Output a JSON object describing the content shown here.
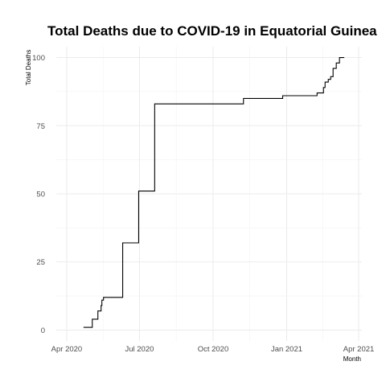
{
  "chart_data": {
    "type": "line",
    "title": "Total Deaths due to COVID-19 in Equatorial Guinea",
    "xlabel": "Month",
    "ylabel": "Total Deaths",
    "x_ticks": [
      {
        "date": "2020-04-01",
        "label": "Apr 2020"
      },
      {
        "date": "2020-07-01",
        "label": "Jul 2020"
      },
      {
        "date": "2020-10-01",
        "label": "Oct 2020"
      },
      {
        "date": "2021-01-01",
        "label": "Jan 2021"
      },
      {
        "date": "2021-04-01",
        "label": "Apr 2021"
      }
    ],
    "y_ticks": [
      0,
      25,
      50,
      75,
      100
    ],
    "xlim": [
      "2020-03-19",
      "2021-04-05"
    ],
    "ylim": [
      -4,
      104
    ],
    "grid": true,
    "legend": "none",
    "step": true,
    "points": [
      {
        "x": "2020-04-22",
        "y": 1
      },
      {
        "x": "2020-05-03",
        "y": 4
      },
      {
        "x": "2020-05-10",
        "y": 7
      },
      {
        "x": "2020-05-14",
        "y": 9
      },
      {
        "x": "2020-05-15",
        "y": 11
      },
      {
        "x": "2020-05-17",
        "y": 12
      },
      {
        "x": "2020-06-10",
        "y": 32
      },
      {
        "x": "2020-06-30",
        "y": 51
      },
      {
        "x": "2020-07-20",
        "y": 83
      },
      {
        "x": "2020-11-08",
        "y": 85
      },
      {
        "x": "2020-12-27",
        "y": 86
      },
      {
        "x": "2021-02-08",
        "y": 87
      },
      {
        "x": "2021-02-16",
        "y": 89
      },
      {
        "x": "2021-02-18",
        "y": 91
      },
      {
        "x": "2021-02-22",
        "y": 92
      },
      {
        "x": "2021-02-25",
        "y": 93
      },
      {
        "x": "2021-02-28",
        "y": 96
      },
      {
        "x": "2021-03-04",
        "y": 98
      },
      {
        "x": "2021-03-08",
        "y": 100
      },
      {
        "x": "2021-03-14",
        "y": 100
      }
    ]
  }
}
